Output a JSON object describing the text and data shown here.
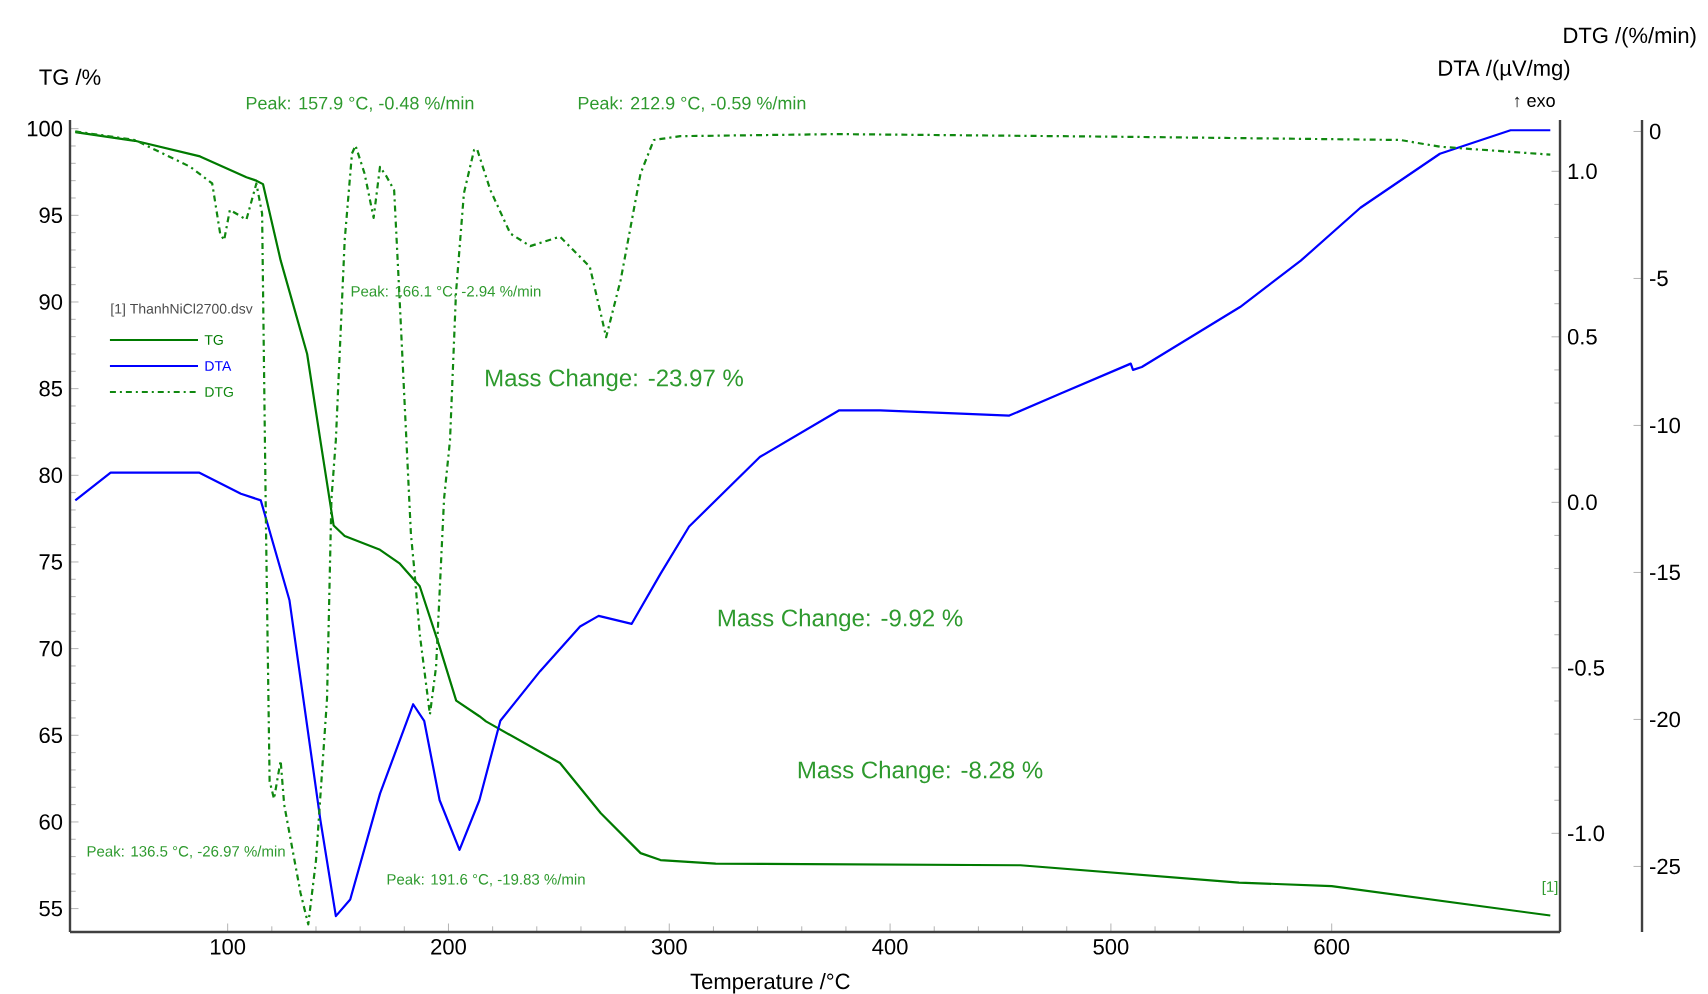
{
  "chart_data": {
    "type": "line",
    "xlabel": "Temperature /°C",
    "ylabel": "TG /%",
    "y2label": "DTA /(µV/mg)",
    "y3label": "DTG /(%/min)",
    "legend_title": "[1] ThanhNiCl2700.dsv",
    "legend": "left",
    "line_style": "solid",
    "xlim": [
      28.6,
      703.4
    ],
    "xticks": [
      100,
      200,
      300,
      400,
      500,
      600
    ],
    "ylim": [
      53.65,
      100.5
    ],
    "yticks": [
      55,
      60,
      65,
      70,
      75,
      80,
      85,
      90,
      95,
      100
    ],
    "y2lim": [
      -1.298,
      1.155
    ],
    "y2ticks": [
      {
        "value": -1,
        "label": "-1.0"
      },
      {
        "value": -0.5,
        "label": "-0.5"
      },
      {
        "value": 0,
        "label": "0.0"
      },
      {
        "value": 0.5,
        "label": "0.5"
      },
      {
        "value": 1,
        "label": "1.0"
      }
    ],
    "y3lim": [
      -27.23,
      0.39
    ],
    "y3ticks": [
      -25,
      -20,
      -15,
      -10,
      -5,
      0
    ],
    "series": [
      {
        "name": "TG",
        "color": "#007a00",
        "x": [
          31,
          58,
          87.5,
          108.5,
          113,
          116,
          124,
          136,
          142,
          148,
          153,
          169,
          178,
          187,
          196,
          203.5,
          214,
          217,
          250.5,
          269,
          287,
          296,
          321,
          459,
          558,
          600,
          699
        ],
        "values": [
          99.8,
          99.3,
          98.4,
          97.2,
          97.0,
          96.8,
          92.4,
          87.0,
          82.0,
          77.1,
          76.5,
          75.7,
          74.9,
          73.6,
          70.1,
          67.0,
          66.1,
          65.8,
          63.4,
          60.5,
          58.2,
          57.8,
          57.6,
          57.5,
          56.5,
          56.3,
          54.6
        ]
      },
      {
        "name": "DTA",
        "color": "#0000ff",
        "axis": "y2",
        "x": [
          31,
          47,
          87,
          106,
          115,
          128,
          142,
          149,
          155.5,
          169,
          184,
          189,
          196,
          205,
          214,
          223.5,
          241.5,
          259.6,
          268,
          283,
          296,
          309,
          341,
          377,
          395.5,
          432,
          454,
          477,
          509,
          510,
          514,
          558.5,
          586,
          613,
          649,
          681,
          699
        ],
        "values": [
          0.006,
          0.09,
          0.09,
          0.026,
          0.006,
          -0.296,
          -0.96,
          -1.25,
          -1.2,
          -0.88,
          -0.61,
          -0.66,
          -0.9,
          -1.05,
          -0.9,
          -0.66,
          -0.51,
          -0.375,
          -0.343,
          -0.367,
          -0.216,
          -0.073,
          0.137,
          0.278,
          0.278,
          0.268,
          0.262,
          0.328,
          0.419,
          0.4,
          0.409,
          0.59,
          0.73,
          0.89,
          1.053,
          1.124,
          1.124
        ]
      },
      {
        "name": "DTG",
        "color": "#108810",
        "axis": "y3",
        "line_style": "dashdot",
        "x": [
          31,
          58,
          83,
          93,
          96.6,
          98.4,
          101,
          108.5,
          113,
          115.6,
          117.4,
          119,
          121,
          124,
          125.6,
          133,
          136.5,
          140,
          145,
          147,
          149,
          153,
          156.3,
          157.9,
          162,
          166.1,
          169,
          172,
          175.4,
          178,
          183,
          184.4,
          187,
          191.6,
          194.4,
          198,
          200.7,
          203.4,
          207,
          211.6,
          212.9,
          219,
          228,
          237,
          250.5,
          264,
          269.6,
          271.4,
          278,
          287,
          293,
          305,
          377,
          504,
          631,
          649,
          699
        ],
        "values": [
          0,
          -0.29,
          -1.2,
          -1.77,
          -3.47,
          -3.7,
          -2.67,
          -3.0,
          -1.77,
          -2.79,
          -13.7,
          -22.1,
          -22.7,
          -21.4,
          -22.9,
          -25.9,
          -26.97,
          -24.8,
          -19.3,
          -12.5,
          -10.5,
          -3.7,
          -0.75,
          -0.48,
          -1.43,
          -2.94,
          -1.2,
          -1.54,
          -2.0,
          -5.9,
          -13.7,
          -14.8,
          -17.1,
          -19.83,
          -18.2,
          -12.5,
          -10.5,
          -5.5,
          -2.1,
          -0.63,
          -0.59,
          -2.0,
          -3.47,
          -3.9,
          -3.58,
          -4.6,
          -6.4,
          -7.0,
          -5.05,
          -1.43,
          -0.29,
          -0.16,
          -0.09,
          -0.18,
          -0.29,
          -0.52,
          -0.79
        ]
      }
    ],
    "annotations": [
      "Peak: 157.9 °C, -0.48 %/min",
      "Peak: 212.9 °C, -0.59 %/min",
      "Peak: 166.1 °C, -2.94 %/min",
      "Peak: 136.5 °C, -26.97 %/min",
      "Peak: 191.6 °C, -19.83 %/min",
      "Mass Change: -23.97 %",
      "Mass Change: -9.92 %",
      "Mass Change: -8.28 %",
      "↑ exo",
      "[1]"
    ]
  }
}
